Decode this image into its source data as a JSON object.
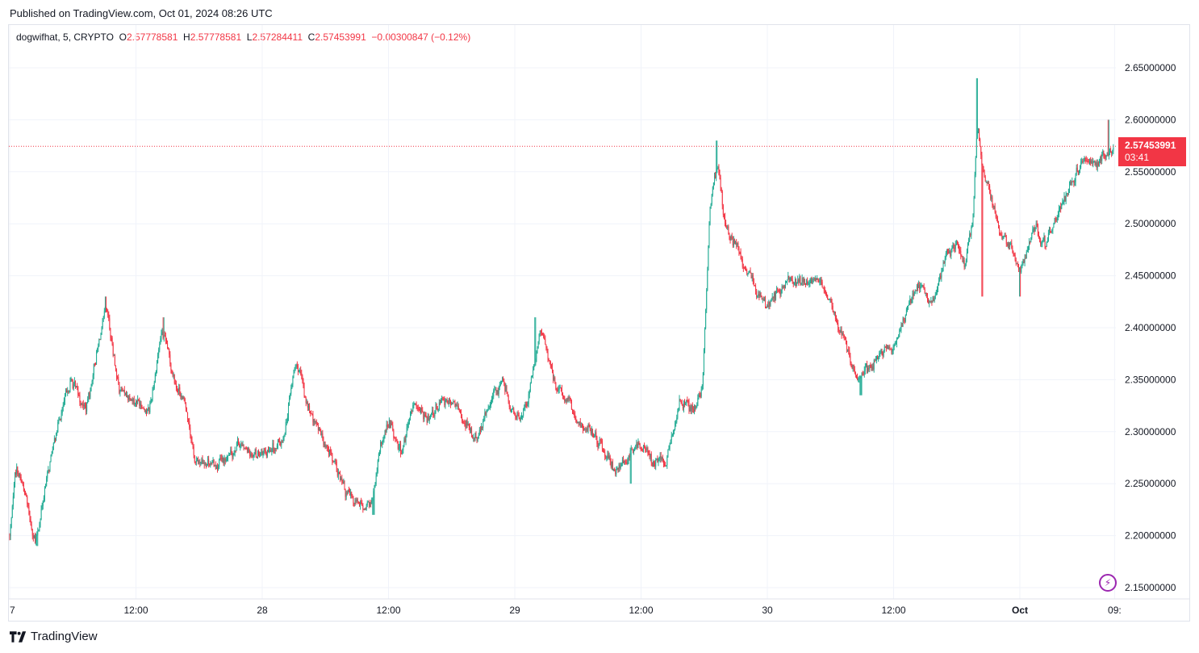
{
  "header": {
    "published": "Published on TradingView.com, Oct 01, 2024 08:26 UTC"
  },
  "legend": {
    "symbol": "dogwifhat, 5, CRYPTO",
    "o_label": "O",
    "o_value": "2.57778581",
    "h_label": "H",
    "h_value": "2.57778581",
    "l_label": "L",
    "l_value": "2.57284411",
    "c_label": "C",
    "c_value": "2.57453991",
    "change": "−0.00300847 (−0.12%)"
  },
  "last_price": {
    "price": "2.57453991",
    "countdown": "03:41"
  },
  "footer": {
    "brand": "TradingView"
  },
  "colors": {
    "up": "#22ab94",
    "down": "#f23645",
    "grid": "#f0f3fa",
    "text": "#131722"
  },
  "icons": {
    "logo": "tradingview-logo-icon",
    "bolt": "lightning-icon"
  },
  "chart_data": {
    "type": "candlestick",
    "title": "dogwifhat, 5, CRYPTO",
    "xlabel": "",
    "ylabel": "",
    "ylim": [
      2.125,
      2.685
    ],
    "y_ticks": [
      2.15,
      2.2,
      2.25,
      2.3,
      2.35,
      2.4,
      2.45,
      2.5,
      2.55,
      2.6,
      2.65
    ],
    "y_tick_labels": [
      "2.15000000",
      "2.20000000",
      "2.25000000",
      "2.30000000",
      "2.35000000",
      "2.40000000",
      "2.45000000",
      "2.50000000",
      "2.55000000",
      "2.60000000",
      "2.65000000"
    ],
    "x_ticks": [
      {
        "label": "7",
        "t": 0.0
      },
      {
        "label": "12:00",
        "t": 0.5
      },
      {
        "label": "28",
        "t": 1.0
      },
      {
        "label": "12:00",
        "t": 1.5
      },
      {
        "label": "29",
        "t": 2.0
      },
      {
        "label": "12:00",
        "t": 2.5
      },
      {
        "label": "30",
        "t": 3.0
      },
      {
        "label": "12:00",
        "t": 3.5
      },
      {
        "label": "Oct",
        "t": 4.0
      },
      {
        "label": "09:",
        "t": 4.375
      }
    ],
    "x_range_days": [
      0.0,
      4.39
    ],
    "last_price": 2.57453991,
    "grid": true,
    "price_path": [
      [
        0.0,
        2.2
      ],
      [
        0.02,
        2.27
      ],
      [
        0.06,
        2.24
      ],
      [
        0.1,
        2.19
      ],
      [
        0.14,
        2.25
      ],
      [
        0.18,
        2.3
      ],
      [
        0.24,
        2.35
      ],
      [
        0.3,
        2.32
      ],
      [
        0.36,
        2.4
      ],
      [
        0.38,
        2.42
      ],
      [
        0.43,
        2.34
      ],
      [
        0.5,
        2.33
      ],
      [
        0.55,
        2.32
      ],
      [
        0.6,
        2.4
      ],
      [
        0.65,
        2.35
      ],
      [
        0.7,
        2.32
      ],
      [
        0.73,
        2.27
      ],
      [
        0.78,
        2.27
      ],
      [
        0.85,
        2.27
      ],
      [
        0.9,
        2.29
      ],
      [
        0.95,
        2.28
      ],
      [
        1.0,
        2.28
      ],
      [
        1.03,
        2.28
      ],
      [
        1.08,
        2.29
      ],
      [
        1.13,
        2.37
      ],
      [
        1.18,
        2.32
      ],
      [
        1.23,
        2.3
      ],
      [
        1.28,
        2.27
      ],
      [
        1.33,
        2.24
      ],
      [
        1.38,
        2.23
      ],
      [
        1.43,
        2.23
      ],
      [
        1.47,
        2.29
      ],
      [
        1.5,
        2.31
      ],
      [
        1.55,
        2.28
      ],
      [
        1.6,
        2.33
      ],
      [
        1.65,
        2.31
      ],
      [
        1.7,
        2.33
      ],
      [
        1.75,
        2.33
      ],
      [
        1.8,
        2.31
      ],
      [
        1.85,
        2.29
      ],
      [
        1.9,
        2.33
      ],
      [
        1.95,
        2.35
      ],
      [
        2.0,
        2.31
      ],
      [
        2.05,
        2.33
      ],
      [
        2.1,
        2.4
      ],
      [
        2.15,
        2.35
      ],
      [
        2.2,
        2.33
      ],
      [
        2.25,
        2.31
      ],
      [
        2.3,
        2.3
      ],
      [
        2.35,
        2.28
      ],
      [
        2.4,
        2.26
      ],
      [
        2.45,
        2.28
      ],
      [
        2.5,
        2.29
      ],
      [
        2.55,
        2.27
      ],
      [
        2.6,
        2.27
      ],
      [
        2.65,
        2.33
      ],
      [
        2.7,
        2.32
      ],
      [
        2.74,
        2.34
      ],
      [
        2.77,
        2.52
      ],
      [
        2.8,
        2.56
      ],
      [
        2.83,
        2.5
      ],
      [
        2.87,
        2.48
      ],
      [
        2.92,
        2.45
      ],
      [
        3.0,
        2.42
      ],
      [
        3.05,
        2.44
      ],
      [
        3.1,
        2.45
      ],
      [
        3.15,
        2.44
      ],
      [
        3.2,
        2.45
      ],
      [
        3.25,
        2.42
      ],
      [
        3.3,
        2.39
      ],
      [
        3.35,
        2.35
      ],
      [
        3.4,
        2.36
      ],
      [
        3.45,
        2.38
      ],
      [
        3.5,
        2.38
      ],
      [
        3.55,
        2.42
      ],
      [
        3.6,
        2.44
      ],
      [
        3.65,
        2.42
      ],
      [
        3.7,
        2.47
      ],
      [
        3.75,
        2.48
      ],
      [
        3.78,
        2.46
      ],
      [
        3.81,
        2.5
      ],
      [
        3.83,
        2.6
      ],
      [
        3.85,
        2.55
      ],
      [
        3.88,
        2.53
      ],
      [
        3.92,
        2.49
      ],
      [
        3.97,
        2.47
      ],
      [
        4.0,
        2.45
      ],
      [
        4.05,
        2.5
      ],
      [
        4.1,
        2.48
      ],
      [
        4.15,
        2.51
      ],
      [
        4.2,
        2.54
      ],
      [
        4.25,
        2.56
      ],
      [
        4.3,
        2.56
      ],
      [
        4.35,
        2.57
      ],
      [
        4.37,
        2.5745
      ]
    ],
    "notable_highs": [
      [
        0.38,
        2.43
      ],
      [
        0.61,
        2.41
      ],
      [
        2.08,
        2.41
      ],
      [
        2.8,
        2.58
      ],
      [
        3.83,
        2.64
      ],
      [
        4.35,
        2.6
      ]
    ],
    "notable_lows": [
      [
        0.11,
        2.19
      ],
      [
        1.44,
        2.22
      ],
      [
        2.46,
        2.25
      ],
      [
        3.37,
        2.335
      ],
      [
        3.85,
        2.43
      ],
      [
        4.0,
        2.43
      ]
    ]
  }
}
